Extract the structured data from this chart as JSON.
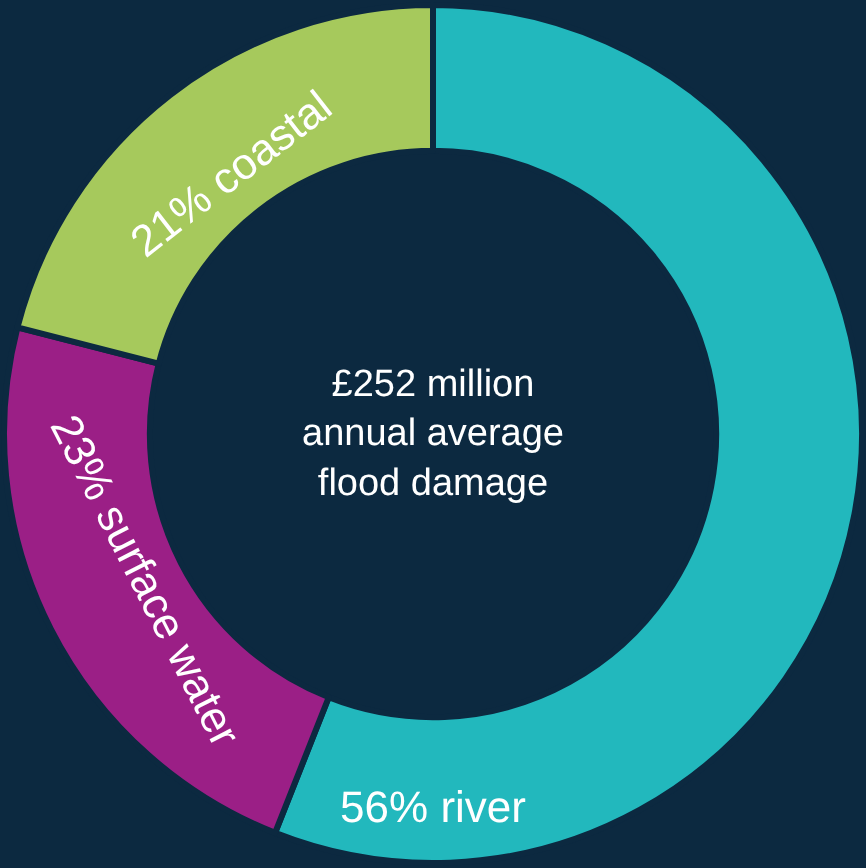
{
  "chart_data": {
    "type": "donut",
    "categories": [
      "56% river",
      "23% surface water",
      "21% coastal"
    ],
    "values": [
      56,
      23,
      21
    ],
    "colors": [
      "#22b8bd",
      "#9b1f86",
      "#a6c95c"
    ],
    "annotations": [
      "£252 million\nannual average\nflood damage"
    ],
    "legend": false
  }
}
